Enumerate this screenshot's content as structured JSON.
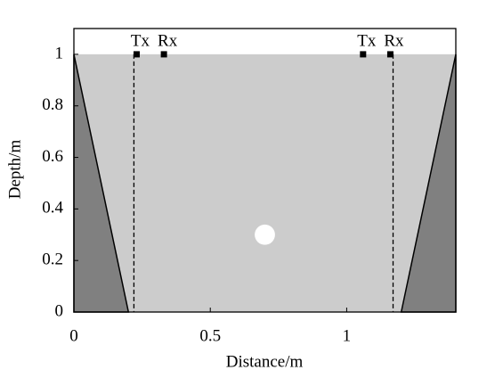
{
  "chart_data": {
    "type": "schematic",
    "xlabel": "Distance/m",
    "ylabel": "Depth/m",
    "xlim": [
      0,
      1.4
    ],
    "ylim": [
      0,
      1.1
    ],
    "xticks": [
      0,
      0.5,
      1
    ],
    "yticks": [
      0,
      0.2,
      0.4,
      0.6,
      0.8,
      1
    ],
    "medium": {
      "x": [
        0,
        1.4,
        1.4,
        0
      ],
      "y": [
        1,
        1,
        0,
        0
      ],
      "color": "#cccccc"
    },
    "slopes": [
      {
        "x": [
          0,
          0.2,
          0
        ],
        "y": [
          1,
          0,
          0
        ],
        "color": "#808080"
      },
      {
        "x": [
          1.4,
          1.2,
          1.4
        ],
        "y": [
          1,
          0,
          0
        ],
        "color": "#808080"
      }
    ],
    "dashed_lines": {
      "x": [
        0.22,
        1.17
      ]
    },
    "transducers": [
      {
        "label": "Tx",
        "x": 0.23,
        "y": 1
      },
      {
        "label": "Rx",
        "x": 0.33,
        "y": 1
      },
      {
        "label": "Tx",
        "x": 1.06,
        "y": 1
      },
      {
        "label": "Rx",
        "x": 1.16,
        "y": 1
      }
    ],
    "target": {
      "x": 0.7,
      "y": 0.3,
      "radius": 0.04,
      "color": "#ffffff"
    }
  }
}
